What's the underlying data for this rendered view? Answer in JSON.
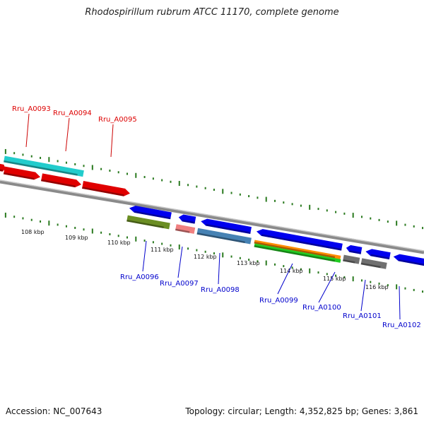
{
  "title": "Rhodospirillum rubrum ATCC 11170, complete genome",
  "footer": {
    "accession": "Accession: NC_007643",
    "summary": "Topology: circular; Length: 4,352,825 bp; Genes: 3,861"
  },
  "colors": {
    "label_forward": "#dd0000",
    "label_reverse": "#0000cc",
    "tick": "#2a7a1f",
    "backbone": "#8a8a8a"
  },
  "scale_labels": [
    "108 kbp",
    "109 kbp",
    "110 kbp",
    "111 kbp",
    "112 kbp",
    "113 kbp",
    "114 kbp",
    "115 kbp",
    "116 kbp"
  ],
  "genes": [
    {
      "id": "Rru_A0093",
      "strand": "forward",
      "color": "#e00000"
    },
    {
      "id": "Rru_A0094",
      "strand": "forward",
      "color": "#e00000"
    },
    {
      "id": "Rru_A0095",
      "strand": "forward",
      "color": "#e00000"
    },
    {
      "id": "Rru_A0096",
      "strand": "reverse",
      "color": "#0000ee"
    },
    {
      "id": "Rru_A0097",
      "strand": "reverse",
      "color": "#0000ee"
    },
    {
      "id": "Rru_A0098",
      "strand": "reverse",
      "color": "#0000ee"
    },
    {
      "id": "Rru_A0099",
      "strand": "reverse",
      "color": "#0000ee"
    },
    {
      "id": "Rru_A0100",
      "strand": "reverse",
      "color": "#0000ee"
    },
    {
      "id": "Rru_A0101",
      "strand": "reverse",
      "color": "#0000ee"
    },
    {
      "id": "Rru_A0102",
      "strand": "reverse",
      "color": "#0000ee"
    }
  ],
  "features": {
    "forward_extra_color": "#22cccc",
    "reverse_extra_colors": [
      "#6b8e23",
      "#f08080",
      "#4682b4",
      "#ff8c00",
      "#22cc22",
      "#707070"
    ]
  }
}
